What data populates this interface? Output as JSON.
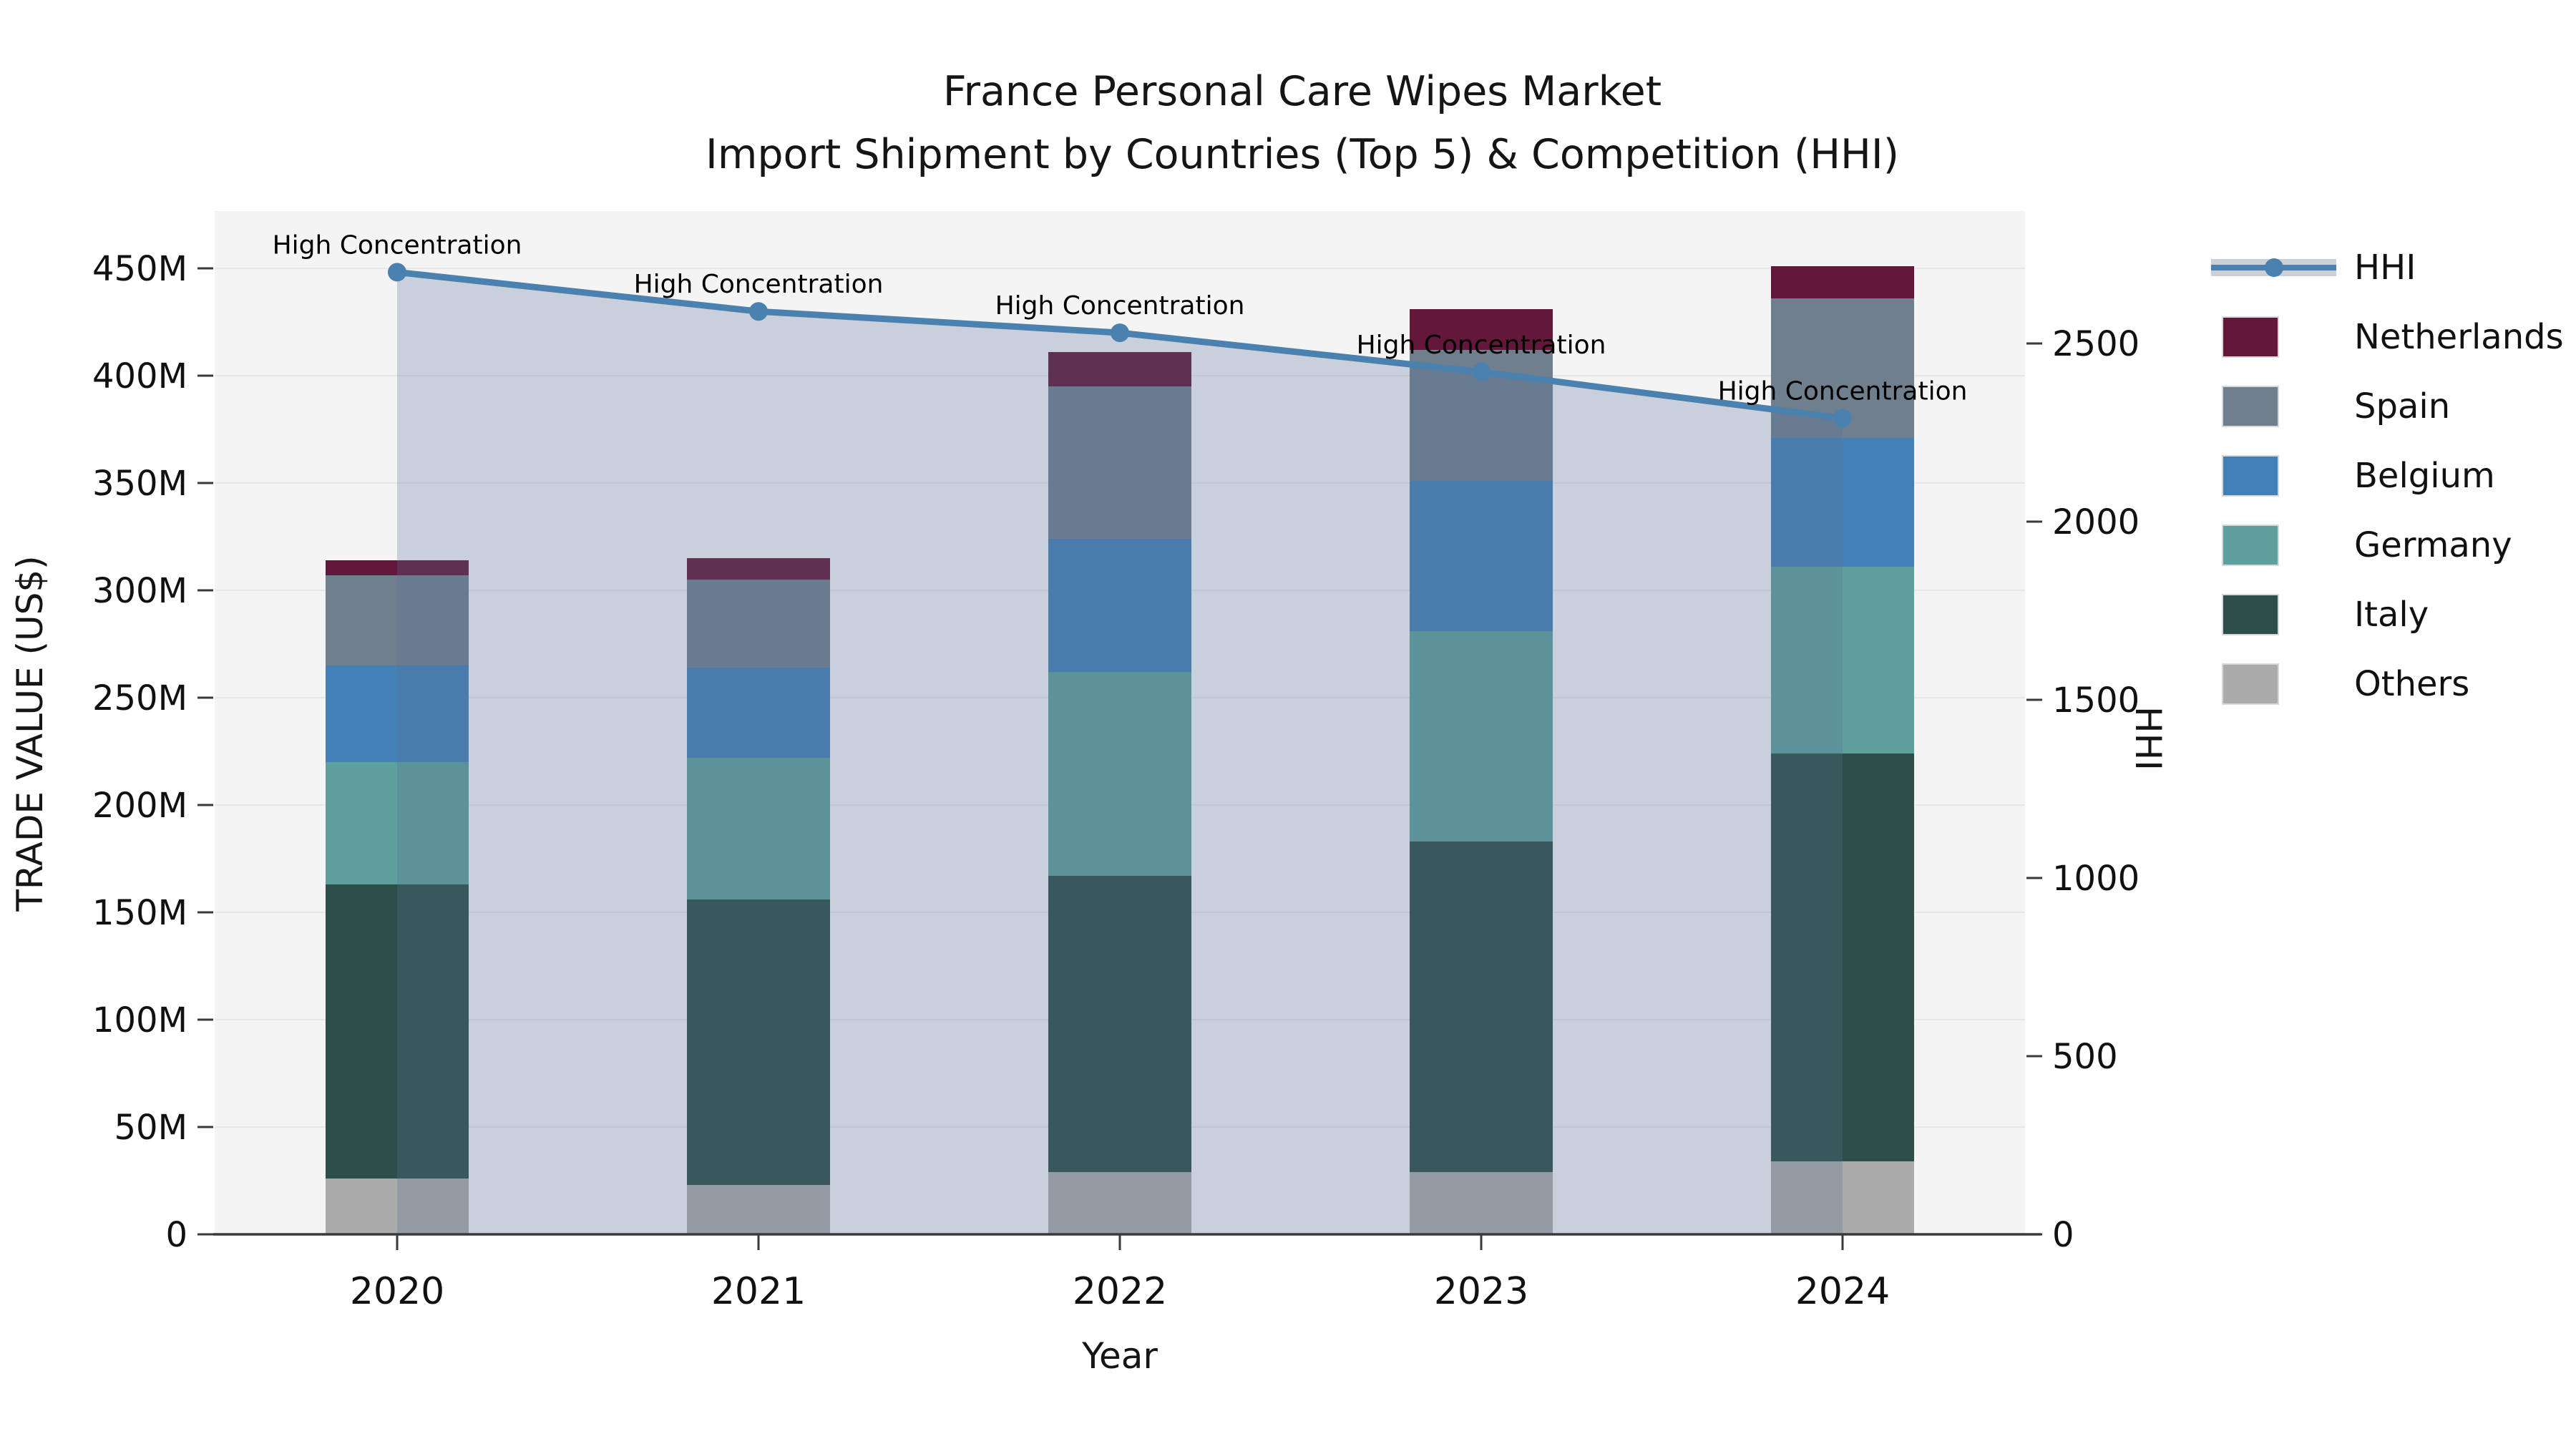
{
  "title": {
    "line1": "France Personal Care Wipes Market",
    "line2": "Import Shipment by Countries (Top 5) & Competition (HHI)"
  },
  "axes": {
    "x_title": "Year",
    "y_left_title": "TRADE VALUE (US$)",
    "y_right_title": "HHI",
    "y_left_ticks": [
      {
        "label": "0",
        "value": 0
      },
      {
        "label": "50M",
        "value": 50
      },
      {
        "label": "100M",
        "value": 100
      },
      {
        "label": "150M",
        "value": 150
      },
      {
        "label": "200M",
        "value": 200
      },
      {
        "label": "250M",
        "value": 250
      },
      {
        "label": "300M",
        "value": 300
      },
      {
        "label": "350M",
        "value": 350
      },
      {
        "label": "400M",
        "value": 400
      },
      {
        "label": "450M",
        "value": 450
      }
    ],
    "y_right_ticks": [
      {
        "label": "0",
        "value": 0
      },
      {
        "label": "500",
        "value": 500
      },
      {
        "label": "1000",
        "value": 1000
      },
      {
        "label": "1500",
        "value": 1500
      },
      {
        "label": "2000",
        "value": 2000
      },
      {
        "label": "2500",
        "value": 2500
      }
    ]
  },
  "chart_data": {
    "type": "bar+line",
    "title": "France Personal Care Wipes Market — Import Shipment by Countries (Top 5) & Competition (HHI)",
    "categories": [
      "2020",
      "2021",
      "2022",
      "2023",
      "2024"
    ],
    "value_unit": "Million US$ (trade value, left axis); HHI index (right axis)",
    "stack_order_note": "series listed bottom-to-top of stack",
    "series": [
      {
        "name": "Others",
        "color": "#ababab",
        "values": [
          26,
          23,
          29,
          29,
          34
        ]
      },
      {
        "name": "Italy",
        "color": "#2d4e49",
        "values": [
          137,
          133,
          138,
          154,
          190
        ]
      },
      {
        "name": "Germany",
        "color": "#5da09d",
        "values": [
          57,
          66,
          95,
          98,
          87
        ]
      },
      {
        "name": "Belgium",
        "color": "#4380b5",
        "values": [
          45,
          42,
          62,
          70,
          60
        ]
      },
      {
        "name": "Spain",
        "color": "#6f7f8e",
        "values": [
          42,
          41,
          71,
          61,
          65
        ]
      },
      {
        "name": "Netherlands",
        "color": "#63173a",
        "values": [
          7,
          10,
          16,
          19,
          15
        ]
      }
    ],
    "line_series": {
      "name": "HHI",
      "color": "#4a81af",
      "area_fill": "rgba(90,115,150,0.28)",
      "values": [
        2700,
        2590,
        2530,
        2420,
        2290
      ]
    },
    "annotations": [
      {
        "category": "2020",
        "label": "High Concentration"
      },
      {
        "category": "2021",
        "label": "High Concentration"
      },
      {
        "category": "2022",
        "label": "High Concentration"
      },
      {
        "category": "2023",
        "label": "High Concentration"
      },
      {
        "category": "2024",
        "label": "High Concentration"
      }
    ],
    "ylim_left": [
      0,
      476
    ],
    "ylim_right": [
      0,
      2870
    ],
    "grid": "horizontal, every 50M",
    "legend_position": "right"
  },
  "legend": {
    "items": [
      {
        "label": "HHI",
        "type": "line"
      },
      {
        "label": "Netherlands",
        "type": "swatch"
      },
      {
        "label": "Spain",
        "type": "swatch"
      },
      {
        "label": "Belgium",
        "type": "swatch"
      },
      {
        "label": "Germany",
        "type": "swatch"
      },
      {
        "label": "Italy",
        "type": "swatch"
      },
      {
        "label": "Others",
        "type": "swatch"
      }
    ]
  },
  "colors": {
    "page_bg": "#ffffff",
    "plot_bg": "#f4f4f5",
    "gridline": "#e6e6e9",
    "axis_line": "#3a3a3a",
    "text": "#111111",
    "legend_band": "#cbd0d8"
  }
}
